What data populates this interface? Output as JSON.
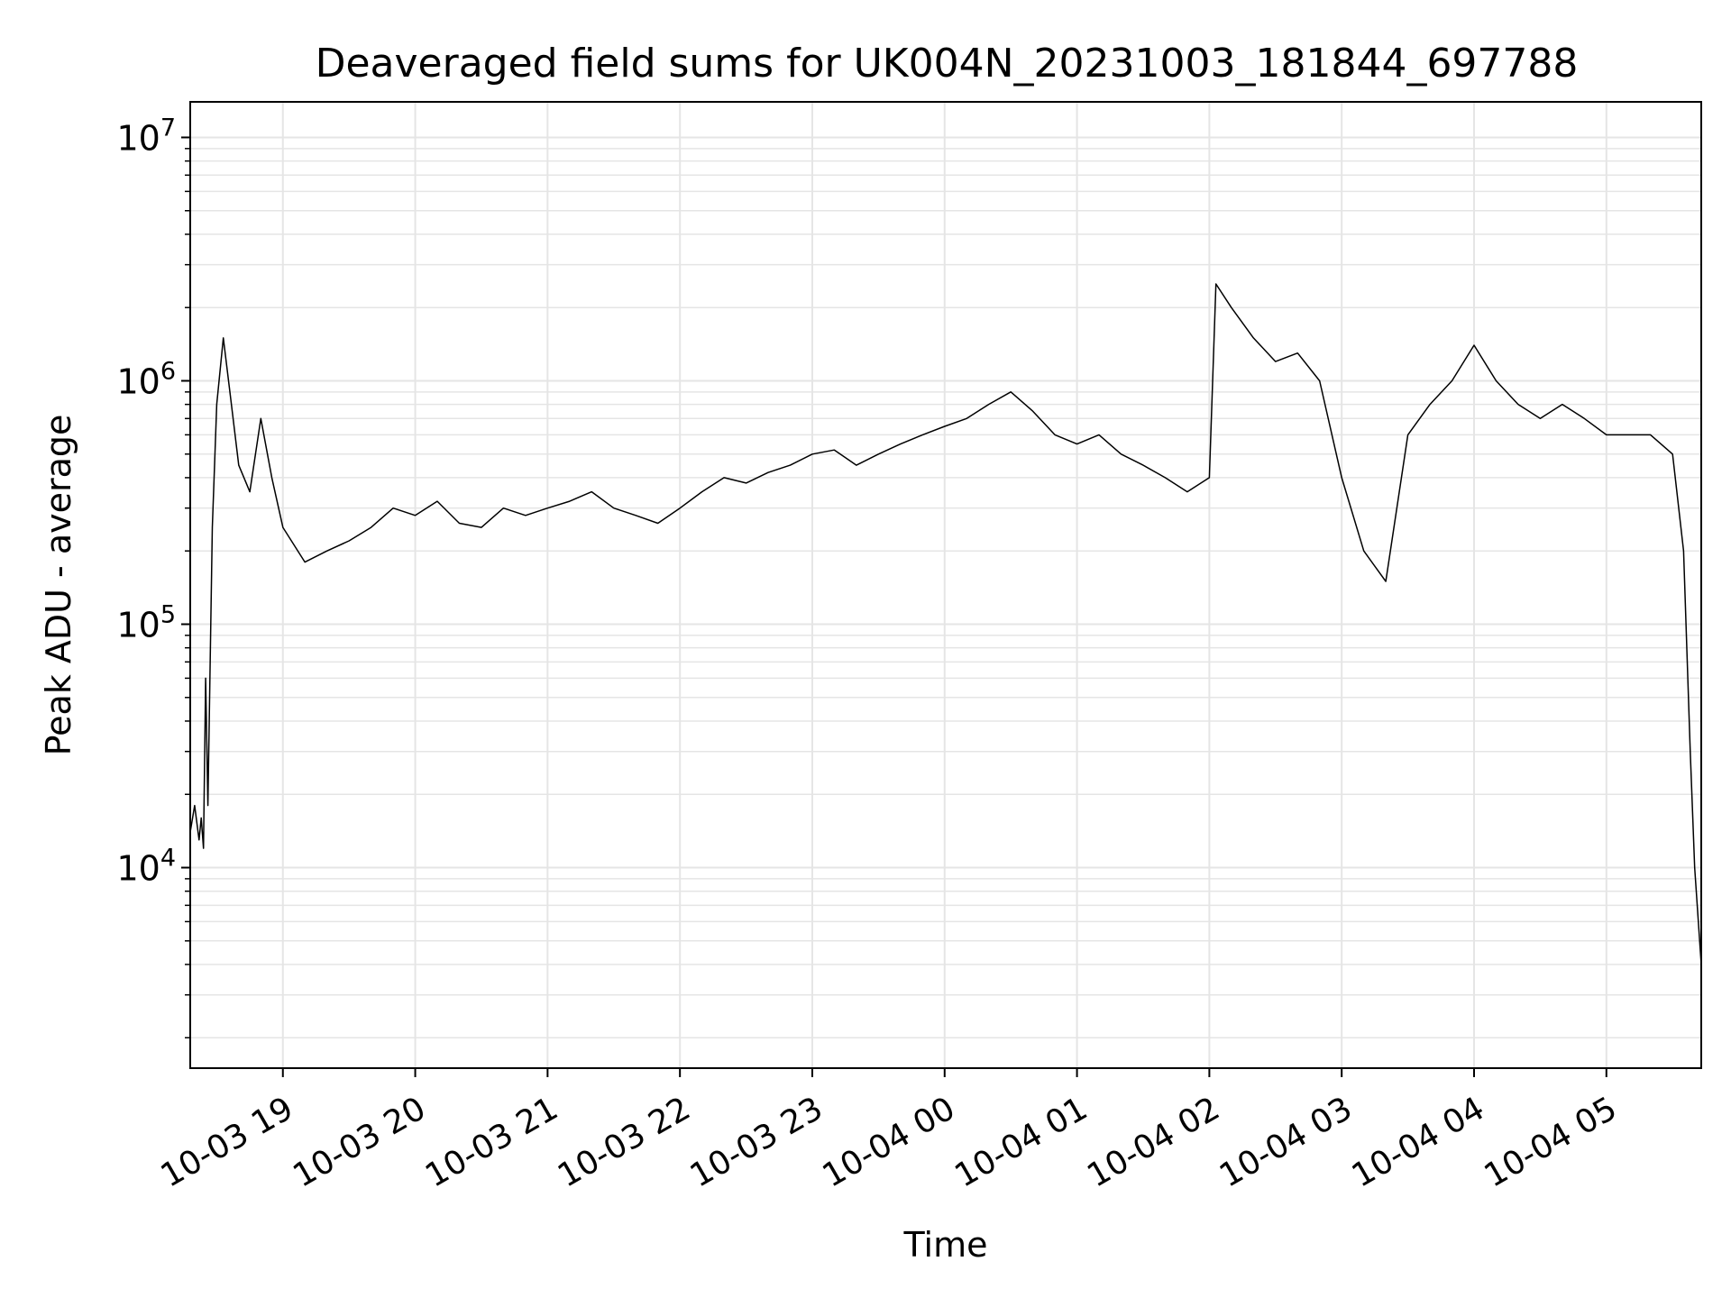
{
  "chart_data": {
    "type": "line",
    "title": "Deaveraged field sums for UK004N_20231003_181844_697788",
    "xlabel": "Time",
    "ylabel": "Peak ADU - average",
    "yscale": "log",
    "ylim": [
      1500,
      14000000
    ],
    "xlim": [
      "2023-10-03 18:18",
      "2023-10-04 05:43"
    ],
    "grid": true,
    "line_color": "#000000",
    "grid_color": "#e5e5e5",
    "x_ticks": [
      {
        "value": "2023-10-03 19:00",
        "label": "10-03 19"
      },
      {
        "value": "2023-10-03 20:00",
        "label": "10-03 20"
      },
      {
        "value": "2023-10-03 21:00",
        "label": "10-03 21"
      },
      {
        "value": "2023-10-03 22:00",
        "label": "10-03 22"
      },
      {
        "value": "2023-10-03 23:00",
        "label": "10-03 23"
      },
      {
        "value": "2023-10-04 00:00",
        "label": "10-04 00"
      },
      {
        "value": "2023-10-04 01:00",
        "label": "10-04 01"
      },
      {
        "value": "2023-10-04 02:00",
        "label": "10-04 02"
      },
      {
        "value": "2023-10-04 03:00",
        "label": "10-04 03"
      },
      {
        "value": "2023-10-04 04:00",
        "label": "10-04 04"
      },
      {
        "value": "2023-10-04 05:00",
        "label": "10-04 05"
      }
    ],
    "y_ticks": [
      {
        "value": 10000,
        "base": "10",
        "exp": "4"
      },
      {
        "value": 100000,
        "base": "10",
        "exp": "5"
      },
      {
        "value": 1000000,
        "base": "10",
        "exp": "6"
      },
      {
        "value": 10000000,
        "base": "10",
        "exp": "7"
      }
    ],
    "series": [
      {
        "x": [
          "2023-10-03 18:18",
          "2023-10-03 18:20",
          "2023-10-03 18:22",
          "2023-10-03 18:23",
          "2023-10-03 18:24",
          "2023-10-03 18:25",
          "2023-10-03 18:26",
          "2023-10-03 18:28",
          "2023-10-03 18:30",
          "2023-10-03 18:33",
          "2023-10-03 18:36",
          "2023-10-03 18:40",
          "2023-10-03 18:45",
          "2023-10-03 18:50",
          "2023-10-03 18:55",
          "2023-10-03 19:00",
          "2023-10-03 19:10",
          "2023-10-03 19:20",
          "2023-10-03 19:30",
          "2023-10-03 19:40",
          "2023-10-03 19:50",
          "2023-10-03 20:00",
          "2023-10-03 20:10",
          "2023-10-03 20:20",
          "2023-10-03 20:30",
          "2023-10-03 20:40",
          "2023-10-03 20:50",
          "2023-10-03 21:00",
          "2023-10-03 21:10",
          "2023-10-03 21:20",
          "2023-10-03 21:30",
          "2023-10-03 21:40",
          "2023-10-03 21:50",
          "2023-10-03 22:00",
          "2023-10-03 22:10",
          "2023-10-03 22:20",
          "2023-10-03 22:30",
          "2023-10-03 22:40",
          "2023-10-03 22:50",
          "2023-10-03 23:00",
          "2023-10-03 23:10",
          "2023-10-03 23:20",
          "2023-10-03 23:30",
          "2023-10-03 23:40",
          "2023-10-03 23:50",
          "2023-10-04 00:00",
          "2023-10-04 00:10",
          "2023-10-04 00:20",
          "2023-10-04 00:30",
          "2023-10-04 00:40",
          "2023-10-04 00:50",
          "2023-10-04 01:00",
          "2023-10-04 01:10",
          "2023-10-04 01:20",
          "2023-10-04 01:30",
          "2023-10-04 01:40",
          "2023-10-04 01:50",
          "2023-10-04 02:00",
          "2023-10-04 02:03",
          "2023-10-04 02:10",
          "2023-10-04 02:20",
          "2023-10-04 02:30",
          "2023-10-04 02:40",
          "2023-10-04 02:50",
          "2023-10-04 03:00",
          "2023-10-04 03:10",
          "2023-10-04 03:20",
          "2023-10-04 03:30",
          "2023-10-04 03:40",
          "2023-10-04 03:50",
          "2023-10-04 04:00",
          "2023-10-04 04:10",
          "2023-10-04 04:20",
          "2023-10-04 04:30",
          "2023-10-04 04:40",
          "2023-10-04 04:50",
          "2023-10-04 05:00",
          "2023-10-04 05:20",
          "2023-10-04 05:30",
          "2023-10-04 05:35",
          "2023-10-04 05:38",
          "2023-10-04 05:40",
          "2023-10-04 05:43"
        ],
        "y": [
          14000,
          18000,
          13000,
          16000,
          12000,
          60000,
          18000,
          250000,
          800000,
          1500000,
          900000,
          450000,
          350000,
          700000,
          400000,
          250000,
          180000,
          200000,
          220000,
          250000,
          300000,
          280000,
          320000,
          260000,
          250000,
          300000,
          280000,
          300000,
          320000,
          350000,
          300000,
          280000,
          260000,
          300000,
          350000,
          400000,
          380000,
          420000,
          450000,
          500000,
          520000,
          450000,
          500000,
          550000,
          600000,
          650000,
          700000,
          800000,
          900000,
          750000,
          600000,
          550000,
          600000,
          500000,
          450000,
          400000,
          350000,
          400000,
          2500000,
          2000000,
          1500000,
          1200000,
          1300000,
          1000000,
          400000,
          200000,
          150000,
          600000,
          800000,
          1000000,
          1400000,
          1000000,
          800000,
          700000,
          800000,
          700000,
          600000,
          600000,
          500000,
          200000,
          30000,
          10000,
          4000
        ]
      }
    ]
  }
}
